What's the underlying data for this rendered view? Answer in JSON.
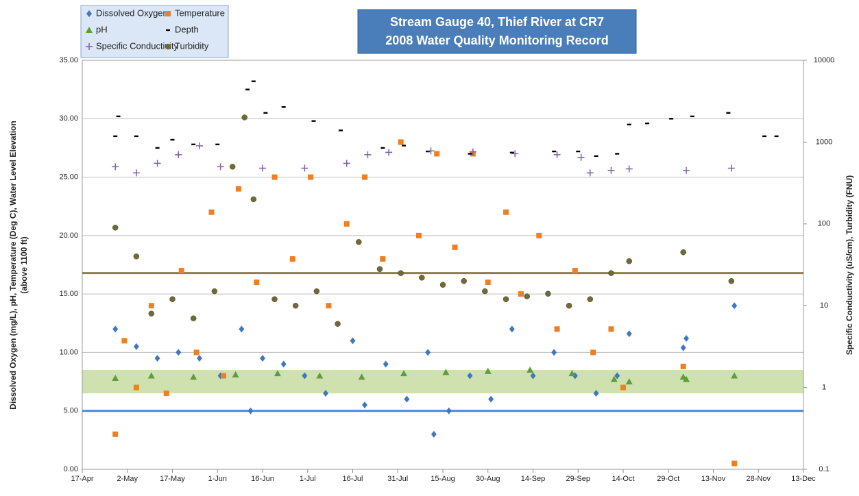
{
  "chart_data": {
    "type": "scatter",
    "title": [
      "Stream Gauge 40, Thief River at CR7",
      "2008 Water Quality Monitoring Record"
    ],
    "ylabel": [
      "Dissolved Oxygen (mg/L), pH, Temperature (Deg C), Water Level Elevation",
      "(above 1100 ft)"
    ],
    "y2label": "Specific Conductivity (uS/cm), Turbidity (FNU)",
    "xlim": [
      "17-Apr",
      "13-Dec"
    ],
    "xticks": [
      "17-Apr",
      "2-May",
      "17-May",
      "1-Jun",
      "16-Jun",
      "1-Jul",
      "16-Jul",
      "31-Jul",
      "15-Aug",
      "30-Aug",
      "14-Sep",
      "29-Sep",
      "14-Oct",
      "29-Oct",
      "13-Nov",
      "28-Nov",
      "13-Dec"
    ],
    "ylim": [
      0,
      35
    ],
    "yticks": [
      {
        "value": 0,
        "label": "0.00"
      },
      {
        "value": 5,
        "label": "5.00"
      },
      {
        "value": 10,
        "label": "10.00"
      },
      {
        "value": 15,
        "label": "15.00"
      },
      {
        "value": 20,
        "label": "20.00"
      },
      {
        "value": 25,
        "label": "25.00"
      },
      {
        "value": 30,
        "label": "30.00"
      },
      {
        "value": 35,
        "label": "35.00"
      }
    ],
    "y2lim": [
      0.1,
      10000
    ],
    "y2log": true,
    "y2ticks": [
      0.1,
      1,
      10,
      100,
      1000,
      10000
    ],
    "grid": true,
    "band": {
      "range": [
        6.5,
        8.5
      ],
      "color": "#c5dca0"
    },
    "reference_lines": [
      {
        "value": 5,
        "color": "#4a86d8"
      },
      {
        "value": 25,
        "axis": "y2",
        "color": "#8a7f45"
      }
    ],
    "series": [
      {
        "name": "Dissolved Oxygen",
        "color": "#3f78c0",
        "marker": "diamond",
        "x": [
          "28-Apr",
          "5-May",
          "12-May",
          "19-May",
          "26-May",
          "2-Jun",
          "9-Jun",
          "12-Jun",
          "16-Jun",
          "23-Jun",
          "30-Jun",
          "7-Jul",
          "16-Jul",
          "20-Jul",
          "27-Jul",
          "3-Aug",
          "10-Aug",
          "12-Aug",
          "17-Aug",
          "24-Aug",
          "31-Aug",
          "7-Sep",
          "14-Sep",
          "21-Sep",
          "28-Sep",
          "5-Oct",
          "12-Oct",
          "16-Oct",
          "3-Nov",
          "4-Nov",
          "20-Nov"
        ],
        "values": [
          12,
          10.5,
          9.5,
          10,
          9.5,
          8,
          12,
          5,
          9.5,
          9,
          8,
          6.5,
          11,
          5.5,
          9,
          6,
          10,
          3,
          5,
          8,
          6,
          12,
          8,
          10,
          8,
          6.5,
          8,
          11.6,
          10.4,
          11.2,
          14
        ]
      },
      {
        "name": "Temperature",
        "color": "#f07f22",
        "marker": "square",
        "x": [
          "28-Apr",
          "1-May",
          "5-May",
          "10-May",
          "15-May",
          "20-May",
          "25-May",
          "30-May",
          "3-Jun",
          "8-Jun",
          "14-Jun",
          "20-Jun",
          "26-Jun",
          "2-Jul",
          "8-Jul",
          "14-Jul",
          "20-Jul",
          "26-Jul",
          "1-Aug",
          "7-Aug",
          "13-Aug",
          "19-Aug",
          "25-Aug",
          "30-Aug",
          "5-Sep",
          "10-Sep",
          "16-Sep",
          "22-Sep",
          "28-Sep",
          "4-Oct",
          "10-Oct",
          "14-Oct",
          "3-Nov",
          "20-Nov"
        ],
        "values": [
          3,
          11,
          7,
          14,
          6.5,
          17,
          10,
          22,
          8,
          24,
          16,
          25,
          18,
          25,
          14,
          21,
          25,
          18,
          28,
          20,
          27,
          19,
          27,
          16,
          22,
          15,
          20,
          12,
          17,
          10,
          12,
          7,
          8.8,
          0.5
        ]
      },
      {
        "name": "pH",
        "color": "#5e9e3a",
        "marker": "triangle",
        "x": [
          "28-Apr",
          "10-May",
          "24-May",
          "7-Jun",
          "21-Jun",
          "5-Jul",
          "19-Jul",
          "2-Aug",
          "16-Aug",
          "30-Aug",
          "13-Sep",
          "27-Sep",
          "11-Oct",
          "16-Oct",
          "3-Nov",
          "4-Nov",
          "20-Nov"
        ],
        "values": [
          7.8,
          8,
          7.9,
          8.1,
          8.2,
          8,
          7.9,
          8.2,
          8.3,
          8.4,
          8.5,
          8.2,
          7.7,
          7.5,
          7.9,
          7.7,
          8
        ]
      },
      {
        "name": "Depth",
        "color": "#000000",
        "marker": "dash",
        "x": [
          "28-Apr",
          "29-Apr",
          "5-May",
          "12-May",
          "17-May",
          "24-May",
          "1-Jun",
          "11-Jun",
          "13-Jun",
          "17-Jun",
          "23-Jun",
          "3-Jul",
          "12-Jul",
          "26-Jul",
          "2-Aug",
          "10-Aug",
          "24-Aug",
          "7-Sep",
          "21-Sep",
          "29-Sep",
          "5-Oct",
          "12-Oct",
          "16-Oct",
          "22-Oct",
          "30-Oct",
          "6-Nov",
          "18-Nov",
          "30-Nov",
          "4-Dec"
        ],
        "values": [
          28.5,
          30.2,
          28.5,
          27.5,
          28.2,
          27.8,
          27.8,
          32.5,
          33.2,
          30.5,
          31,
          29.8,
          29,
          27.5,
          27.7,
          27.2,
          27,
          27.1,
          27.2,
          27.2,
          26.8,
          27,
          29.5,
          29.6,
          30,
          30.2,
          30.5,
          28.5,
          28.5
        ]
      },
      {
        "name": "Specific Conductivity",
        "color": "#7f5fa8",
        "marker": "plus",
        "axis": "y2",
        "x": [
          "28-Apr",
          "5-May",
          "12-May",
          "19-May",
          "26-May",
          "2-Jun",
          "16-Jun",
          "30-Jun",
          "14-Jul",
          "21-Jul",
          "28-Jul",
          "11-Aug",
          "25-Aug",
          "8-Sep",
          "22-Sep",
          "30-Sep",
          "3-Oct",
          "10-Oct",
          "16-Oct",
          "4-Nov",
          "19-Nov"
        ],
        "values": [
          500,
          420,
          550,
          700,
          900,
          500,
          480,
          480,
          550,
          700,
          750,
          780,
          760,
          720,
          700,
          650,
          420,
          450,
          470,
          450,
          480
        ]
      },
      {
        "name": "Turbidity",
        "color": "#6f6a38",
        "marker": "circle",
        "axis": "y2",
        "x": [
          "28-Apr",
          "5-May",
          "10-May",
          "17-May",
          "24-May",
          "31-May",
          "6-Jun",
          "10-Jun",
          "13-Jun",
          "20-Jun",
          "27-Jun",
          "4-Jul",
          "11-Jul",
          "18-Jul",
          "25-Jul",
          "1-Aug",
          "8-Aug",
          "15-Aug",
          "22-Aug",
          "29-Aug",
          "5-Sep",
          "12-Sep",
          "19-Sep",
          "26-Sep",
          "3-Oct",
          "10-Oct",
          "16-Oct",
          "3-Nov",
          "19-Nov"
        ],
        "values": [
          90,
          40,
          8,
          12,
          7,
          15,
          500,
          2000,
          200,
          12,
          10,
          15,
          6,
          60,
          28,
          25,
          22,
          18,
          20,
          15,
          12,
          13,
          14,
          10,
          12,
          25,
          35,
          45,
          20
        ]
      }
    ]
  }
}
